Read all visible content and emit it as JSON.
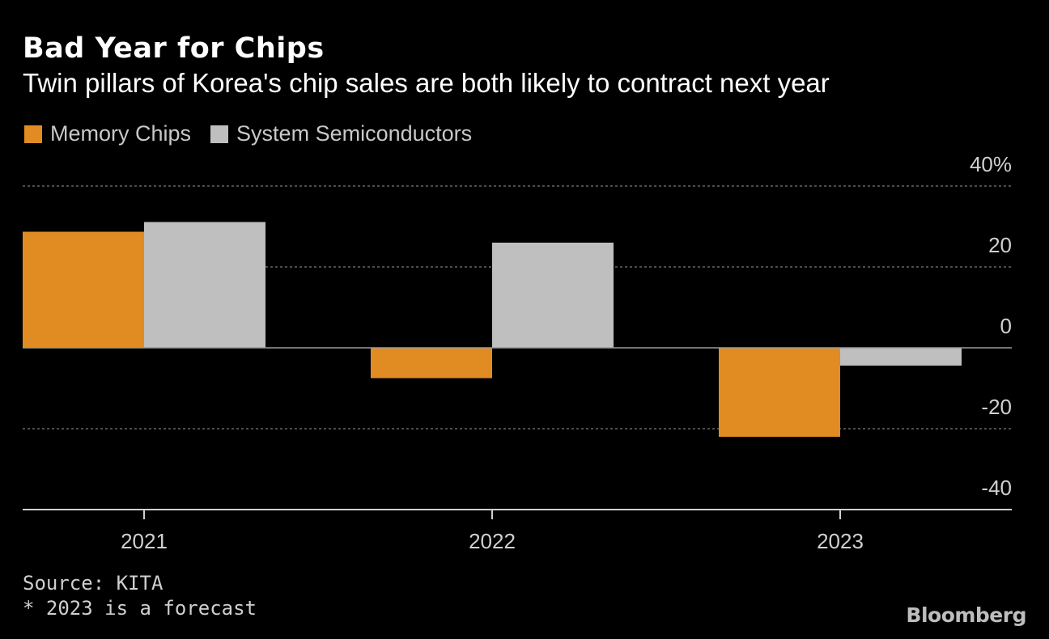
{
  "colors": {
    "background": "#000000",
    "memory": "#e08c22",
    "system": "#bfbfbf",
    "grid": "#7a7a7a",
    "axis": "#cfcfcf"
  },
  "footer": {
    "source": "Source: KITA",
    "note": "* 2023 is a forecast",
    "brand": "Bloomberg"
  },
  "chart_data": {
    "type": "bar",
    "title": "Bad Year for Chips",
    "subtitle": "Twin pillars of Korea's chip sales are both likely to contract next year",
    "categories": [
      "2021",
      "2022",
      "2023"
    ],
    "series": [
      {
        "name": "Memory Chips",
        "values": [
          28.7,
          -7.5,
          -22
        ]
      },
      {
        "name": "System Semiconductors",
        "values": [
          31.1,
          26,
          -4.4
        ]
      }
    ],
    "ylim": [
      -40,
      40
    ],
    "yticks": [
      40,
      20,
      0,
      -20,
      -40
    ],
    "ytick_labels": [
      "40%",
      "20",
      "0",
      "-20",
      "-40"
    ],
    "grid": true,
    "legend_position": "top-left",
    "xlabel": "",
    "ylabel": ""
  }
}
